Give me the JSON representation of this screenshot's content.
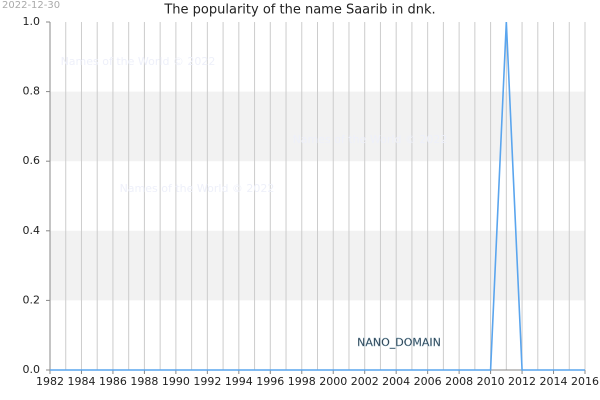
{
  "chart_data": {
    "type": "line",
    "title": "The popularity of the name Saarib in dnk.",
    "date": "2022-12-30",
    "watermarks": [
      "Names of the World © 2022",
      "Names of the World © 2022",
      "Names of the World © 2022"
    ],
    "domain_label": "NANO_DOMAIN",
    "x": [
      1982,
      1983,
      1984,
      1985,
      1986,
      1987,
      1988,
      1989,
      1990,
      1991,
      1992,
      1993,
      1994,
      1995,
      1996,
      1997,
      1998,
      1999,
      2000,
      2001,
      2002,
      2003,
      2004,
      2005,
      2006,
      2007,
      2008,
      2009,
      2010,
      2011,
      2012,
      2013,
      2014,
      2015,
      2016
    ],
    "series": [
      {
        "color": "#5aa5ee",
        "values": [
          0,
          0,
          0,
          0,
          0,
          0,
          0,
          0,
          0,
          0,
          0,
          0,
          0,
          0,
          0,
          0,
          0,
          0,
          0,
          0,
          0,
          0,
          0,
          0,
          0,
          0,
          0,
          0,
          0,
          1,
          0,
          0,
          0,
          0,
          0
        ]
      }
    ],
    "xlim": [
      1982,
      2016
    ],
    "xticks": [
      1982,
      1984,
      1986,
      1988,
      1990,
      1992,
      1994,
      1996,
      1998,
      2000,
      2002,
      2004,
      2006,
      2008,
      2010,
      2012,
      2014,
      2016
    ],
    "xgrid": [
      1982,
      1983,
      1984,
      1985,
      1986,
      1987,
      1988,
      1989,
      1990,
      1991,
      1992,
      1993,
      1994,
      1995,
      1996,
      1997,
      1998,
      1999,
      2000,
      2001,
      2002,
      2003,
      2004,
      2005,
      2006,
      2007,
      2008,
      2009,
      2010,
      2011,
      2012,
      2013,
      2014,
      2015,
      2016
    ],
    "ylim": [
      0,
      1
    ],
    "yticks": [
      {
        "value": 0,
        "label": "0.0"
      },
      0.2,
      0.4,
      0.6,
      0.8,
      {
        "value": 1,
        "label": "1.0"
      }
    ],
    "bands": [
      [
        0.2,
        0.4
      ],
      [
        0.6,
        0.8
      ]
    ],
    "band_color": "#f2f2f2"
  }
}
